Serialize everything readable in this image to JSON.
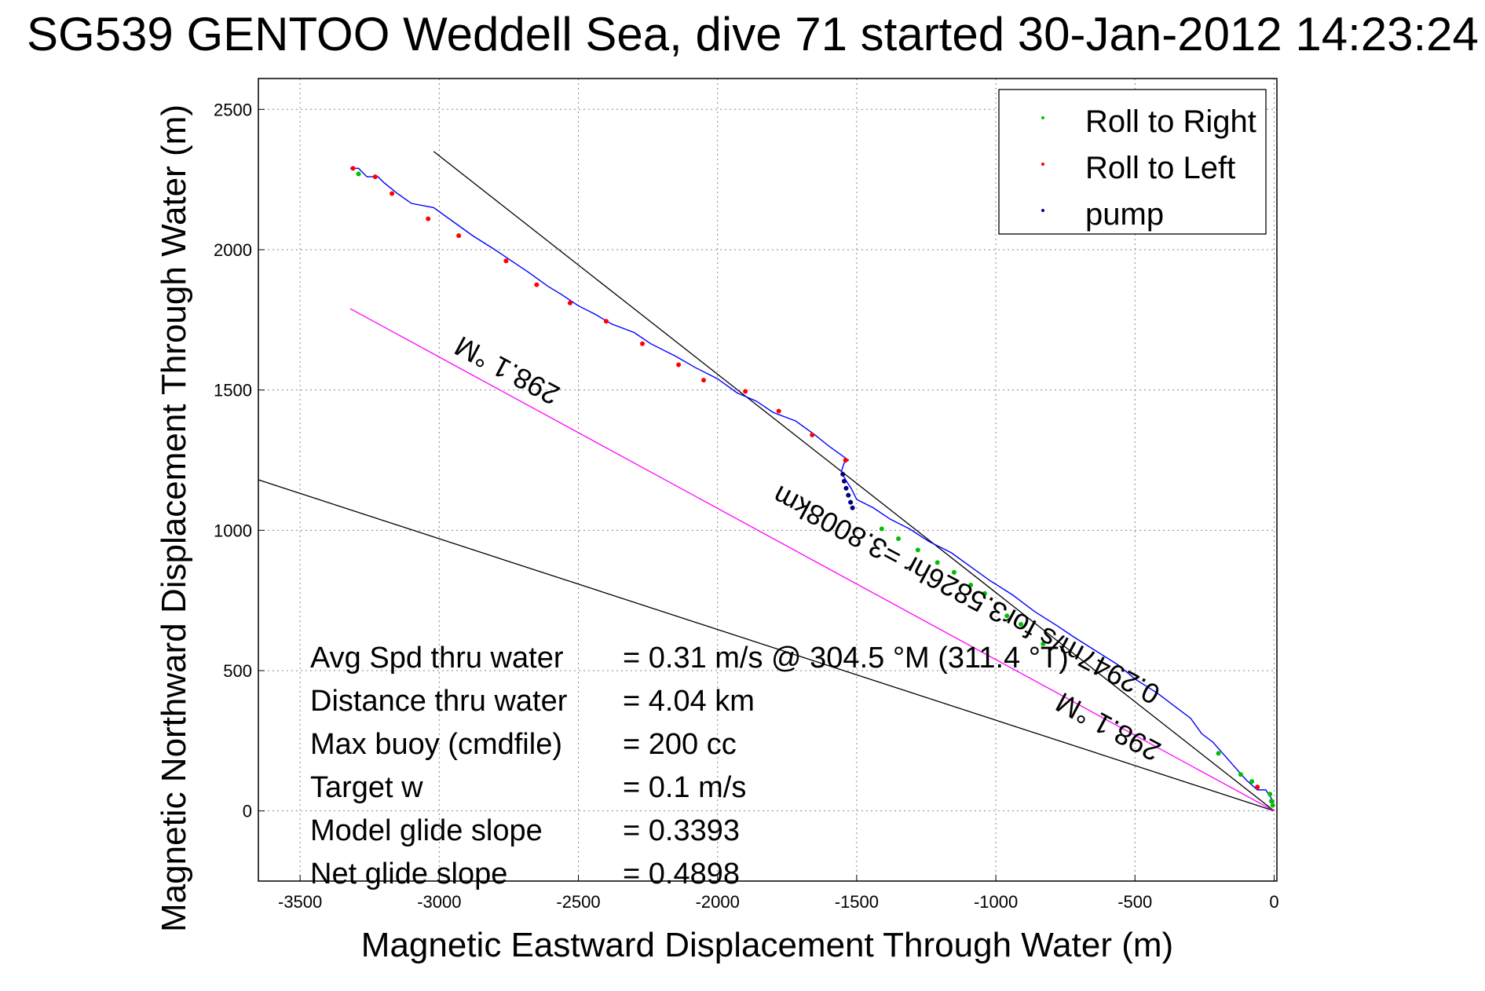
{
  "chart_data": {
    "type": "line",
    "title": "SG539 GENTOO Weddell Sea, dive 71 started 30-Jan-2012 14:23:24",
    "xlabel": "Magnetic Eastward Displacement Through Water (m)",
    "ylabel": "Magnetic Northward Displacement Through Water (m)",
    "xlim": [
      -3650,
      10
    ],
    "ylim": [
      -250,
      2610
    ],
    "xticks": [
      -3500,
      -3000,
      -2500,
      -2000,
      -1500,
      -1000,
      -500,
      0
    ],
    "yticks": [
      0,
      500,
      1000,
      1500,
      2000,
      2500
    ],
    "grid": true,
    "legend": {
      "placement": "top-right",
      "entries": [
        {
          "label": "Roll to Right",
          "color": "#00c000"
        },
        {
          "label": "Roll to Left",
          "color": "#ff0000"
        },
        {
          "label": "pump",
          "color": "#000080"
        }
      ]
    },
    "track": {
      "color": "#0000ff",
      "x": [
        0,
        -30,
        -60,
        -100,
        -140,
        -180,
        -220,
        -260,
        -300,
        -360,
        -420,
        -500,
        -560,
        -640,
        -720,
        -780,
        -860,
        -940,
        -1020,
        -1090,
        -1160,
        -1240,
        -1310,
        -1380,
        -1440,
        -1500,
        -1520,
        -1540,
        -1555,
        -1545,
        -1530,
        -1600,
        -1650,
        -1720,
        -1800,
        -1860,
        -1930,
        -2000,
        -2080,
        -2150,
        -2240,
        -2300,
        -2380,
        -2440,
        -2500,
        -2560,
        -2610,
        -2680,
        -2740,
        -2800,
        -2880,
        -2950,
        -3020,
        -3100,
        -3150,
        -3200,
        -3220,
        -3260,
        -3290,
        -3320
      ],
      "y": [
        30,
        75,
        75,
        110,
        155,
        200,
        245,
        275,
        330,
        375,
        420,
        470,
        520,
        570,
        620,
        660,
        710,
        770,
        820,
        870,
        920,
        960,
        1005,
        1040,
        1080,
        1110,
        1150,
        1180,
        1210,
        1240,
        1250,
        1300,
        1340,
        1390,
        1420,
        1460,
        1490,
        1540,
        1580,
        1620,
        1665,
        1705,
        1735,
        1770,
        1800,
        1840,
        1870,
        1920,
        1960,
        2000,
        2050,
        2100,
        2150,
        2165,
        2200,
        2240,
        2260,
        2260,
        2290,
        2290
      ]
    },
    "roll_right_points": {
      "x": [
        -1410,
        -1350,
        -1280,
        -1210,
        -1150,
        -1090,
        -1040,
        -960,
        -910,
        -830,
        -200,
        -120,
        -80,
        -15,
        -10,
        -5,
        -3290
      ],
      "y": [
        1005,
        970,
        930,
        885,
        850,
        805,
        775,
        695,
        665,
        595,
        205,
        130,
        105,
        60,
        35,
        20,
        2270
      ]
    },
    "roll_left_points": {
      "x": [
        -3310,
        -3230,
        -3170,
        -3040,
        -2930,
        -2760,
        -2650,
        -2530,
        -2400,
        -2270,
        -2140,
        -2050,
        -1900,
        -1780,
        -1660,
        -1540,
        -60
      ],
      "y": [
        2290,
        2260,
        2200,
        2110,
        2050,
        1960,
        1875,
        1810,
        1745,
        1665,
        1590,
        1535,
        1495,
        1425,
        1340,
        1250,
        85
      ]
    },
    "pump_points": {
      "x": [
        -1550,
        -1545,
        -1538,
        -1530,
        -1522,
        -1515
      ],
      "y": [
        1200,
        1175,
        1150,
        1125,
        1100,
        1080
      ]
    },
    "lines": [
      {
        "name": "upper-heading-line",
        "color": "#000000",
        "x": [
          0,
          -3020
        ],
        "y": [
          0,
          2350
        ]
      },
      {
        "name": "lower-heading-line",
        "color": "#000000",
        "x": [
          0,
          -3650
        ],
        "y": [
          0,
          1180
        ]
      },
      {
        "name": "current-line",
        "color": "#ff00ff",
        "x": [
          0,
          -3320
        ],
        "y": [
          0,
          1790
        ]
      }
    ],
    "annotations": [
      {
        "text": "298.1 °M",
        "x": -2740,
        "y": 1600,
        "rotation": 208
      },
      {
        "text": "0.2947m/s for3.5826hr =3.8008km",
        "x": -1090,
        "y": 800,
        "rotation": 208
      },
      {
        "text": "298.1 °M",
        "x": -580,
        "y": 330,
        "rotation": 208
      }
    ],
    "stats": [
      {
        "label": "Avg Spd thru water",
        "value": "=  0.31 m/s @ 304.5  °M (311.4 °T)"
      },
      {
        "label": "Distance thru water",
        "value": "=  4.04 km"
      },
      {
        "label": "Max buoy (cmdfile)",
        "value": "= 200 cc"
      },
      {
        "label": "Target w",
        "value": "= 0.1 m/s"
      },
      {
        "label": "Model glide slope",
        "value": "= 0.3393"
      },
      {
        "label": "Net glide slope",
        "value": "= 0.4898"
      }
    ]
  }
}
